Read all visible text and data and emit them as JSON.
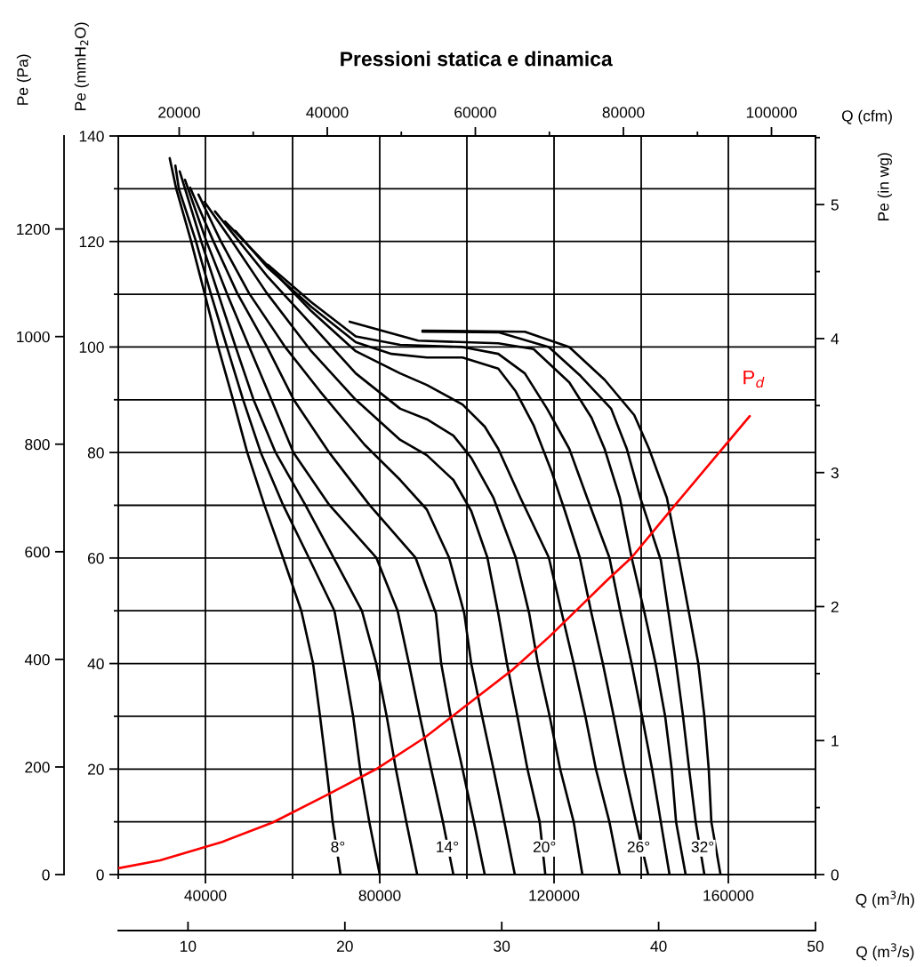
{
  "chart_data": [
    {
      "type": "line",
      "title": "Pressioni statica e dinamica",
      "xlabel": "Q (m$^{3}$/h)",
      "ylabel": "Pe (mmH$_{2}$O)",
      "y3label": "Pe (Pa)",
      "y2label": "Pe (in wg)",
      "x2label": "Q (cfm)",
      "xlim": [
        20000,
        180000
      ],
      "xticks": [
        {
          "value": 20000,
          "label": null
        },
        40000,
        {
          "value": 60000,
          "label": null
        },
        80000,
        {
          "value": 100000,
          "label": null
        },
        120000,
        {
          "value": 140000,
          "label": null
        },
        160000,
        {
          "value": 180000,
          "label": null
        }
      ],
      "ylim": [
        0,
        140
      ],
      "yticks": [
        0,
        {
          "value": 10,
          "label": null
        },
        20,
        {
          "value": 30,
          "label": null
        },
        40,
        {
          "value": 50,
          "label": null
        },
        60,
        {
          "value": 70,
          "label": null
        },
        80,
        {
          "value": 90,
          "label": null
        },
        100,
        {
          "value": 110,
          "label": null
        },
        120,
        {
          "value": 130,
          "label": null
        },
        140
      ],
      "y3lim": [
        0,
        1372.9
      ],
      "y3ticks": [
        0,
        200,
        400,
        600,
        800,
        1000,
        1200
      ],
      "y2lim": [
        0,
        5.512
      ],
      "y2ticks": [
        0,
        {
          "value": 0.5,
          "label": null
        },
        1,
        {
          "value": 1.5,
          "label": null
        },
        2,
        {
          "value": 2.5,
          "label": null
        },
        3,
        {
          "value": 3.5,
          "label": null
        },
        4,
        {
          "value": 4.5,
          "label": null
        },
        5,
        {
          "value": 5.5,
          "label": null
        }
      ],
      "x2lim": [
        11772,
        105944
      ],
      "x2ticks": [
        20000,
        {
          "value": 30000,
          "label": null
        },
        40000,
        {
          "value": 50000,
          "label": null
        },
        60000,
        {
          "value": 70000,
          "label": null
        },
        80000,
        {
          "value": 90000,
          "label": null
        },
        100000
      ],
      "grid": true,
      "series": [
        {
          "color": "#000000",
          "x": [
            31800,
            33300,
            36700,
            39800,
            42900,
            46300,
            49600,
            53500,
            57800,
            62000,
            64700,
            66300,
            67800,
            69200,
            71000
          ],
          "values": [
            135.8,
            130,
            120.1,
            110.2,
            100.1,
            90.1,
            80,
            70.1,
            60.1,
            50,
            40,
            30,
            20,
            10,
            0
          ]
        },
        {
          "color": "#000000",
          "x": [
            33100,
            33900,
            37800,
            41200,
            44900,
            48600,
            52700,
            57800,
            63700,
            69600,
            71800,
            73900,
            75500,
            77600,
            80000
          ],
          "values": [
            134.4,
            130,
            120.1,
            110.2,
            100.1,
            90.1,
            80,
            70.1,
            60.1,
            50,
            40,
            30,
            20,
            10,
            0
          ]
        },
        {
          "color": "#000000",
          "x": [
            34100,
            39000,
            42900,
            46900,
            51000,
            56100,
            62900,
            69400,
            75900,
            79200,
            81600,
            83700,
            86100,
            88600
          ],
          "values": [
            133.3,
            120.1,
            110.2,
            100.1,
            90.1,
            80,
            70.1,
            60.1,
            50,
            40,
            30,
            20,
            10,
            0
          ]
        },
        {
          "color": "#000000",
          "x": [
            35300,
            40200,
            44900,
            50000,
            55100,
            60200,
            68400,
            79200,
            84100,
            86700,
            89200,
            91800,
            94500,
            96900
          ],
          "values": [
            131.7,
            120.1,
            110.2,
            100.1,
            90.1,
            80,
            70.1,
            60.1,
            50,
            40,
            30,
            20,
            10,
            0
          ]
        },
        {
          "color": "#000000",
          "x": [
            36500,
            41800,
            47300,
            54100,
            60200,
            68400,
            77600,
            88200,
            92900,
            94100,
            96300,
            99000,
            101600,
            104100
          ],
          "values": [
            130.2,
            120.1,
            110.2,
            100.1,
            90.1,
            80,
            70.1,
            60.1,
            49.5,
            40,
            30,
            20,
            10,
            0
          ]
        },
        {
          "color": "#000000",
          "x": [
            38400,
            43500,
            50000,
            58200,
            66300,
            76500,
            84700,
            90800,
            95900,
            99400,
            101000,
            103500,
            106100,
            108600,
            111000
          ],
          "values": [
            128.9,
            120.1,
            110.2,
            100.1,
            91.6,
            81.5,
            74.8,
            69.2,
            60.1,
            49.5,
            40,
            30,
            20,
            10,
            0
          ]
        },
        {
          "color": "#000000",
          "x": [
            39800,
            45900,
            54100,
            64300,
            74500,
            84700,
            90800,
            96900,
            101000,
            104700,
            107200,
            109200,
            111600,
            113900,
            116700,
            118000
          ],
          "values": [
            127.5,
            120.3,
            110.2,
            99.2,
            90,
            82.4,
            79.5,
            74.8,
            68.9,
            60.1,
            49.5,
            40,
            30,
            20,
            10,
            0
          ]
        },
        {
          "color": "#000000",
          "x": [
            42200,
            54100,
            64300,
            74500,
            84700,
            90800,
            96900,
            101000,
            106100,
            111200,
            114300,
            116300,
            119000,
            121400,
            124500,
            126500
          ],
          "values": [
            125.7,
            113.5,
            104.3,
            95,
            88.3,
            86.3,
            83.2,
            79,
            71.4,
            60.1,
            49.5,
            40,
            30,
            20,
            10,
            0
          ]
        },
        {
          "color": "#000000",
          "x": [
            44500,
            54100,
            64300,
            74500,
            84700,
            90800,
            99000,
            104100,
            107200,
            112300,
            118800,
            121800,
            124500,
            127200,
            129600,
            132700,
            135100
          ],
          "values": [
            123.8,
            115.6,
            106.8,
            99.2,
            95,
            92.8,
            89.1,
            84.9,
            80.7,
            71.4,
            60.1,
            49.5,
            40,
            30,
            20,
            10,
            0
          ]
        },
        {
          "color": "#000000",
          "x": [
            46900,
            54100,
            64300,
            74500,
            82700,
            90800,
            99000,
            107200,
            111200,
            115300,
            119400,
            122500,
            125900,
            128600,
            131200,
            133700,
            136100,
            138800,
            141600
          ],
          "values": [
            122,
            115.2,
            107.6,
            100.9,
            98.7,
            98,
            98,
            95.9,
            91.6,
            85.2,
            76.5,
            68.9,
            60.1,
            49.5,
            40,
            30,
            20,
            10,
            0
          ]
        },
        {
          "color": "#000000",
          "x": [
            54300,
            64300,
            74500,
            84700,
            99000,
            107200,
            113300,
            118400,
            123500,
            127600,
            132700,
            135300,
            137800,
            140200,
            142500,
            144500,
            146500
          ],
          "values": [
            115.6,
            108.5,
            102,
            100.4,
            100,
            98.7,
            95,
            88.3,
            80.7,
            71.4,
            60.1,
            49.5,
            40,
            30,
            20,
            10,
            0
          ]
        },
        {
          "color": "#000000",
          "x": [
            73100,
            88800,
            107200,
            115300,
            123500,
            128600,
            131600,
            135100,
            137800,
            140800,
            143300,
            145500,
            147000,
            148000,
            150200
          ],
          "values": [
            104.8,
            101.2,
            100.7,
            99.6,
            93.3,
            86.6,
            80.7,
            71.4,
            60.1,
            49.5,
            40,
            30,
            20,
            10,
            0
          ]
        },
        {
          "color": "#000000",
          "x": [
            89800,
            107200,
            118800,
            126100,
            133100,
            136700,
            139800,
            144500,
            146300,
            148000,
            149600,
            151000,
            152500,
            154500
          ],
          "values": [
            102.9,
            102.8,
            100,
            94.5,
            88.3,
            80.7,
            71.4,
            59.6,
            49.5,
            40,
            30,
            20,
            10,
            0
          ]
        },
        {
          "color": "#000000",
          "x": [
            89800,
            113300,
            123500,
            131600,
            138400,
            141800,
            145900,
            148600,
            151000,
            153100,
            154500,
            155500,
            156100,
            158200
          ],
          "values": [
            103.1,
            102.9,
            100,
            93.8,
            87.1,
            80.7,
            71.4,
            60.1,
            49.5,
            40,
            30,
            20,
            10,
            0
          ]
        }
      ],
      "annotations": [
        {
          "text": "8°",
          "x": 70400,
          "y": 5
        },
        {
          "text": "14°",
          "x": 95500,
          "y": 5
        },
        {
          "text": "20°",
          "x": 117800,
          "y": 5
        },
        {
          "text": "26°",
          "x": 139400,
          "y": 5
        },
        {
          "text": "32°",
          "x": 154100,
          "y": 5
        }
      ]
    },
    {
      "type": "line",
      "tick_labels": "x",
      "ylim": [
        0,
        140
      ],
      "series": [
        {
          "name": "P$_{d}$",
          "color": "#ff0000",
          "x": [
            5.56,
            8.22,
            12.19,
            15.42,
            19.0,
            22.0,
            25.06,
            27.5,
            30.72,
            33.0,
            34.86,
            36.75,
            38.28,
            40.64,
            44.11,
            45.81
          ],
          "values": [
            1.2,
            2.7,
            6.2,
            9.9,
            15.3,
            20,
            25.9,
            31.5,
            38.9,
            45,
            50.4,
            55.9,
            60.1,
            68.6,
            80.9,
            86.9
          ]
        }
      ],
      "xlabel": "Q (m$^{3}$/s)",
      "xlim": [
        5.556,
        50
      ],
      "xticks": [
        10,
        20,
        30,
        40,
        50
      ]
    }
  ]
}
